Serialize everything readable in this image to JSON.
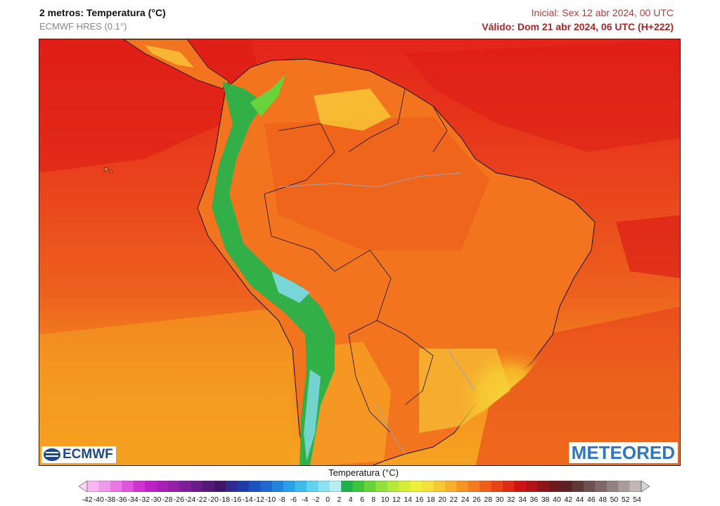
{
  "header": {
    "title": "2 metros: Temperatura (°C)",
    "model": "ECMWF HRES (0.1°)",
    "initial": "Inicial: Sex 12 abr 2024, 00 UTC",
    "valid": "Válido: Dom 21 abr 2024, 06 UTC (H+222)"
  },
  "logos": {
    "left": "ECMWF",
    "right": "METEORED"
  },
  "legend": {
    "title": "Temperatura (°C)",
    "ticks": [
      -42,
      -40,
      -38,
      -36,
      -34,
      -32,
      -30,
      -28,
      -26,
      -24,
      -22,
      -20,
      -18,
      -16,
      -14,
      -12,
      -10,
      -8,
      -6,
      -4,
      -2,
      0,
      2,
      4,
      6,
      8,
      10,
      12,
      14,
      16,
      18,
      20,
      22,
      24,
      26,
      28,
      30,
      32,
      34,
      36,
      38,
      40,
      42,
      44,
      46,
      48,
      50,
      52,
      54
    ],
    "colors": [
      "#fbd3f6",
      "#f7b7f2",
      "#f09aec",
      "#e978e4",
      "#df56dc",
      "#d132d2",
      "#be22c6",
      "#a820b8",
      "#9520a8",
      "#7f1e98",
      "#6a1b88",
      "#541877",
      "#401466",
      "#2f2a8f",
      "#1f3ca6",
      "#1e50bf",
      "#1e68d0",
      "#2083dc",
      "#2aa0e6",
      "#3cbcea",
      "#5fd2ee",
      "#8ae2f0",
      "#b6eef2",
      "#1fb24a",
      "#3ec43a",
      "#66d43a",
      "#8fe03a",
      "#b6e83a",
      "#d6ee3a",
      "#f0f03a",
      "#f6e03a",
      "#f8c832",
      "#f8b02a",
      "#f69622",
      "#f27c1e",
      "#ee601a",
      "#e84418",
      "#e02a16",
      "#cc1414",
      "#b01414",
      "#8e1618",
      "#6e1a1c",
      "#5a2222",
      "#603838",
      "#6e5050",
      "#806868",
      "#948282",
      "#aa9c9c",
      "#c0b8b8",
      "#d6d4d4"
    ]
  },
  "map": {
    "palette": {
      "ocean_hot": "#e3241a",
      "ocean_warm": "#ea4b1d",
      "ocean_mild": "#ee6a1f",
      "ocean_cool": "#f2861f",
      "ocean_cold": "#f7a221",
      "land_hot": "#ee5a1c",
      "land_warm": "#f2741e",
      "land_mild": "#f6a623",
      "land_cool": "#f8d23a",
      "andes_high": "#27b24a",
      "andes_peak": "#7fd9e8"
    }
  }
}
